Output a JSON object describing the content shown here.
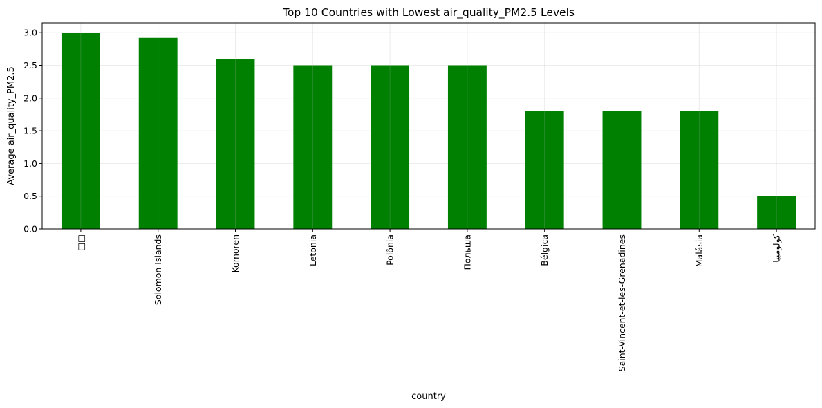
{
  "chart_data": {
    "type": "bar",
    "title": "Top 10 Countries with Lowest air_quality_PM2.5 Levels",
    "xlabel": "country",
    "ylabel": "Average air_quality_PM2.5",
    "categories": [
      "□□",
      "Solomon Islands",
      "Komoren",
      "Letonia",
      "Polônia",
      "Польша",
      "Bélgica",
      "Saint-Vincent-et-les-Grenadines",
      "Malásia",
      "كولومبيا"
    ],
    "values": [
      3.0,
      2.92,
      2.6,
      2.5,
      2.5,
      2.5,
      1.8,
      1.8,
      1.8,
      0.5
    ],
    "ylim": [
      0,
      3.15
    ],
    "yticks": [
      "0.0",
      "0.5",
      "1.0",
      "1.5",
      "2.0",
      "2.5",
      "3.0"
    ],
    "bar_color": "#008000",
    "grid": true
  }
}
